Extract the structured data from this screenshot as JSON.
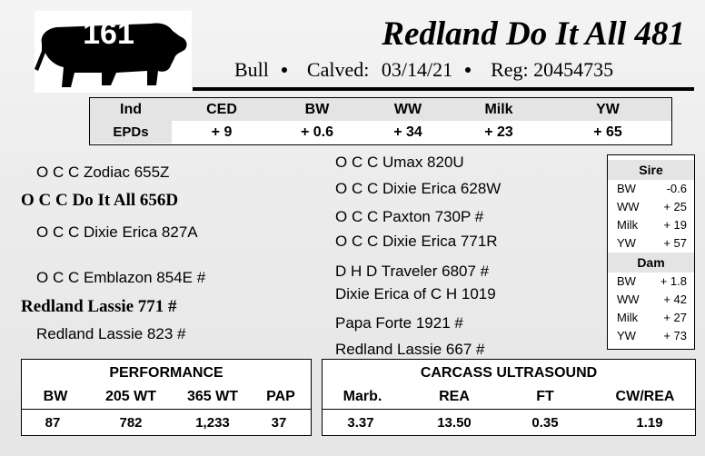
{
  "header": {
    "lot_number": "161",
    "title": "Redland Do It All 481",
    "sex": "Bull",
    "calved_label": "Calved:",
    "calved_date": "03/14/21",
    "reg_label": "Reg:",
    "reg_number": "20454735"
  },
  "epd": {
    "headers": [
      "Ind",
      "CED",
      "BW",
      "WW",
      "Milk",
      "YW"
    ],
    "row_label": "EPDs",
    "values": [
      "+ 9",
      "+ 0.6",
      "+ 34",
      "+ 23",
      "+ 65"
    ]
  },
  "pedigree": {
    "sire_sire": "O C C Zodiac 655Z",
    "sire": "O C C Do It All 656D",
    "sire_dam": "O C C Dixie Erica 827A",
    "dam_sire": "O C C Emblazon 854E #",
    "dam": "Redland Lassie 771 #",
    "dam_dam": "Redland Lassie 823 #",
    "ss_sire": "O C C Umax 820U",
    "ss_dam": "O C C Dixie Erica 628W",
    "sd_sire": "O C C Paxton 730P #",
    "sd_dam": "O C C Dixie Erica 771R",
    "ds_sire": "D H D Traveler 6807 #",
    "ds_dam": "Dixie Erica of C H 1019",
    "dd_sire": "Papa Forte 1921 #",
    "dd_dam": "Redland Lassie 667 #"
  },
  "sire_epds": {
    "title": "Sire",
    "rows": [
      {
        "k": "BW",
        "v": "-0.6"
      },
      {
        "k": "WW",
        "v": "+ 25"
      },
      {
        "k": "Milk",
        "v": "+ 19"
      },
      {
        "k": "YW",
        "v": "+ 57"
      }
    ]
  },
  "dam_epds": {
    "title": "Dam",
    "rows": [
      {
        "k": "BW",
        "v": "+ 1.8"
      },
      {
        "k": "WW",
        "v": "+ 42"
      },
      {
        "k": "Milk",
        "v": "+ 27"
      },
      {
        "k": "YW",
        "v": "+ 73"
      }
    ]
  },
  "performance": {
    "title": "PERFORMANCE",
    "headers": [
      "BW",
      "205 WT",
      "365 WT",
      "PAP"
    ],
    "values": [
      "87",
      "782",
      "1,233",
      "37"
    ]
  },
  "carcass": {
    "title": "CARCASS ULTRASOUND",
    "headers": [
      "Marb.",
      "REA",
      "FT",
      "CW/REA"
    ],
    "values": [
      "3.37",
      "13.50",
      "0.35",
      "1.19"
    ]
  }
}
